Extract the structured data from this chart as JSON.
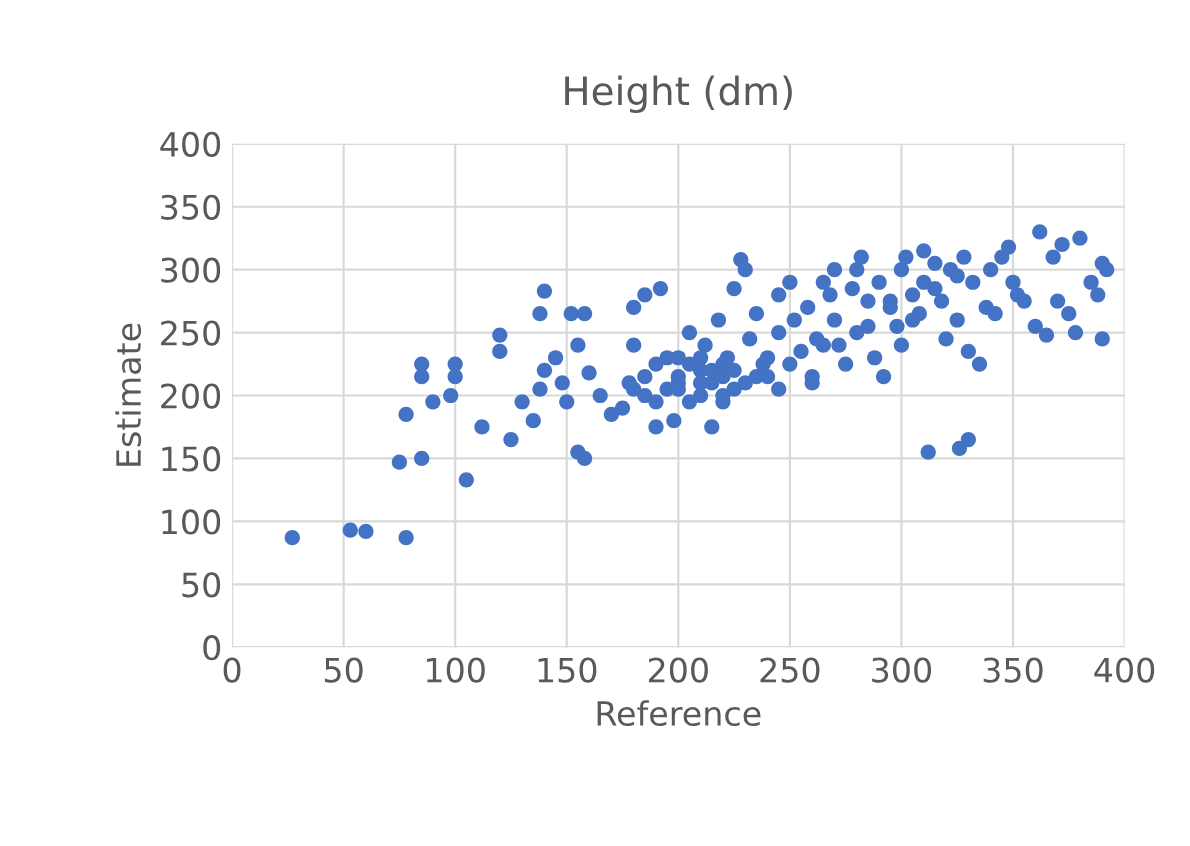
{
  "chart_data": {
    "type": "scatter",
    "title": "Height (dm)",
    "xlabel": "Reference",
    "ylabel": "Estimate",
    "series": [
      {
        "color": "#4472c4",
        "x": [
          27,
          53,
          60,
          78,
          75,
          85,
          78,
          85,
          85,
          90,
          98,
          100,
          100,
          105,
          112,
          120,
          120,
          125,
          130,
          135,
          138,
          138,
          140,
          140,
          145,
          148,
          150,
          152,
          155,
          158,
          155,
          160,
          158,
          165,
          170,
          175,
          178,
          180,
          180,
          185,
          185,
          190,
          190,
          192,
          195,
          198,
          200,
          200,
          205,
          205,
          210,
          210,
          212,
          215,
          215,
          218,
          220,
          220,
          222,
          225,
          225,
          228,
          230,
          232,
          235,
          238,
          240,
          245,
          245,
          245,
          250,
          252,
          255,
          258,
          260,
          260,
          262,
          265,
          268,
          270,
          270,
          272,
          275,
          278,
          280,
          282,
          285,
          285,
          288,
          290,
          292,
          295,
          298,
          300,
          300,
          302,
          305,
          308,
          310,
          310,
          312,
          315,
          318,
          320,
          322,
          325,
          326,
          328,
          330,
          330,
          332,
          335,
          338,
          340,
          342,
          345,
          348,
          350,
          352,
          355,
          360,
          362,
          365,
          368,
          370,
          372,
          375,
          378,
          380,
          385,
          388,
          390,
          390,
          392,
          180,
          185,
          195,
          200,
          205,
          210,
          215,
          220,
          225,
          230,
          235,
          240,
          190,
          200,
          210,
          220,
          250,
          265,
          280,
          295,
          305,
          315,
          325
        ],
        "values": [
          87,
          93,
          92,
          87,
          147,
          150,
          185,
          215,
          225,
          195,
          200,
          215,
          225,
          133,
          175,
          235,
          248,
          165,
          195,
          180,
          205,
          265,
          283,
          220,
          230,
          210,
          195,
          265,
          155,
          150,
          240,
          218,
          265,
          200,
          185,
          190,
          210,
          240,
          270,
          280,
          200,
          225,
          175,
          285,
          205,
          180,
          215,
          230,
          195,
          250,
          220,
          200,
          240,
          175,
          210,
          260,
          225,
          195,
          230,
          205,
          285,
          308,
          300,
          245,
          265,
          225,
          215,
          280,
          250,
          205,
          290,
          260,
          235,
          270,
          215,
          210,
          245,
          290,
          280,
          300,
          260,
          240,
          225,
          285,
          300,
          310,
          275,
          255,
          230,
          290,
          215,
          275,
          255,
          240,
          300,
          310,
          280,
          265,
          290,
          315,
          155,
          305,
          275,
          245,
          300,
          260,
          158,
          310,
          165,
          235,
          290,
          225,
          270,
          300,
          265,
          310,
          318,
          290,
          280,
          275,
          255,
          330,
          248,
          310,
          275,
          320,
          265,
          250,
          325,
          290,
          280,
          305,
          245,
          300,
          205,
          215,
          230,
          210,
          225,
          230,
          220,
          215,
          220,
          210,
          215,
          230,
          195,
          205,
          210,
          200,
          225,
          240,
          250,
          270,
          260,
          285,
          295
        ]
      }
    ],
    "xlim": [
      0,
      400
    ],
    "ylim": [
      0,
      400
    ],
    "xticks": [
      0,
      50,
      100,
      150,
      200,
      250,
      300,
      350,
      400
    ],
    "yticks": [
      0,
      50,
      100,
      150,
      200,
      250,
      300,
      350,
      400
    ],
    "grid": true,
    "marker": "circle",
    "legend": false
  }
}
